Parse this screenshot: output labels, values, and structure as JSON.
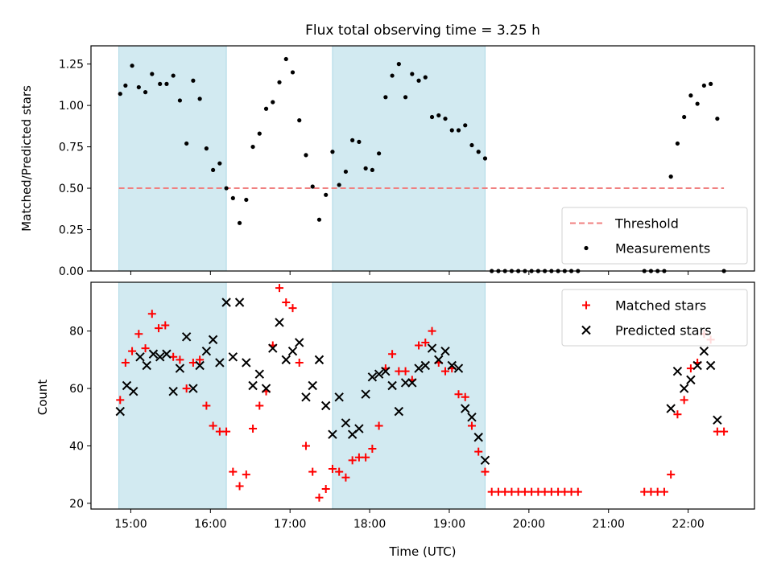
{
  "chart_data": {
    "title": "Flux total observing time = 3.25 h",
    "xlabel": "Time (UTC)",
    "x_ticks": [
      "15:00",
      "16:00",
      "17:00",
      "18:00",
      "19:00",
      "20:00",
      "21:00",
      "22:00"
    ],
    "xlim": [
      "14:30",
      "22:50"
    ],
    "shaded_intervals": [
      [
        "14:51",
        "16:12"
      ],
      [
        "17:32",
        "19:27"
      ]
    ],
    "shade_color": "#add8e6",
    "panels": [
      {
        "type": "scatter",
        "ylabel": "Matched/Predicted stars",
        "ylim": [
          0,
          1.36
        ],
        "y_ticks": [
          "0.00",
          "0.25",
          "0.50",
          "0.75",
          "1.00",
          "1.25"
        ],
        "threshold": {
          "name": "Threshold",
          "y": 0.5,
          "x_range": [
            "14:51",
            "22:27"
          ],
          "color": "#f08080"
        },
        "legend_position": "lower right",
        "series": [
          {
            "name": "Measurements",
            "color": "#000000",
            "points": [
              [
                "14:52",
                1.07
              ],
              [
                "14:56",
                1.12
              ],
              [
                "15:01",
                1.24
              ],
              [
                "15:06",
                1.11
              ],
              [
                "15:11",
                1.08
              ],
              [
                "15:16",
                1.19
              ],
              [
                "15:22",
                1.13
              ],
              [
                "15:27",
                1.13
              ],
              [
                "15:32",
                1.18
              ],
              [
                "15:37",
                1.03
              ],
              [
                "15:42",
                0.77
              ],
              [
                "15:47",
                1.15
              ],
              [
                "15:52",
                1.04
              ],
              [
                "15:57",
                0.74
              ],
              [
                "16:02",
                0.61
              ],
              [
                "16:07",
                0.65
              ],
              [
                "16:12",
                0.5
              ],
              [
                "16:17",
                0.44
              ],
              [
                "16:22",
                0.29
              ],
              [
                "16:27",
                0.43
              ],
              [
                "16:32",
                0.75
              ],
              [
                "16:37",
                0.83
              ],
              [
                "16:42",
                0.98
              ],
              [
                "16:47",
                1.02
              ],
              [
                "16:52",
                1.14
              ],
              [
                "16:57",
                1.28
              ],
              [
                "17:02",
                1.2
              ],
              [
                "17:07",
                0.91
              ],
              [
                "17:12",
                0.7
              ],
              [
                "17:17",
                0.51
              ],
              [
                "17:22",
                0.31
              ],
              [
                "17:27",
                0.46
              ],
              [
                "17:32",
                0.72
              ],
              [
                "17:37",
                0.52
              ],
              [
                "17:42",
                0.6
              ],
              [
                "17:47",
                0.79
              ],
              [
                "17:52",
                0.78
              ],
              [
                "17:57",
                0.62
              ],
              [
                "18:02",
                0.61
              ],
              [
                "18:07",
                0.71
              ],
              [
                "18:12",
                1.05
              ],
              [
                "18:17",
                1.18
              ],
              [
                "18:22",
                1.25
              ],
              [
                "18:27",
                1.05
              ],
              [
                "18:32",
                1.19
              ],
              [
                "18:37",
                1.15
              ],
              [
                "18:42",
                1.17
              ],
              [
                "18:47",
                0.93
              ],
              [
                "18:52",
                0.94
              ],
              [
                "18:57",
                0.92
              ],
              [
                "19:02",
                0.85
              ],
              [
                "19:07",
                0.85
              ],
              [
                "19:12",
                0.88
              ],
              [
                "19:17",
                0.76
              ],
              [
                "19:22",
                0.72
              ],
              [
                "19:27",
                0.68
              ],
              [
                "19:32",
                0
              ],
              [
                "19:37",
                0
              ],
              [
                "19:42",
                0
              ],
              [
                "19:47",
                0
              ],
              [
                "19:52",
                0
              ],
              [
                "19:57",
                0
              ],
              [
                "20:02",
                0
              ],
              [
                "20:07",
                0
              ],
              [
                "20:12",
                0
              ],
              [
                "20:17",
                0
              ],
              [
                "20:22",
                0
              ],
              [
                "20:27",
                0
              ],
              [
                "20:32",
                0
              ],
              [
                "20:37",
                0
              ],
              [
                "21:27",
                0
              ],
              [
                "21:32",
                0
              ],
              [
                "21:37",
                0
              ],
              [
                "21:42",
                0
              ],
              [
                "21:47",
                0.57
              ],
              [
                "21:52",
                0.77
              ],
              [
                "21:57",
                0.93
              ],
              [
                "22:02",
                1.06
              ],
              [
                "22:07",
                1.01
              ],
              [
                "22:12",
                1.12
              ],
              [
                "22:17",
                1.13
              ],
              [
                "22:22",
                0.92
              ],
              [
                "22:27",
                0
              ]
            ]
          }
        ]
      },
      {
        "type": "scatter",
        "ylabel": "Count",
        "ylim": [
          18,
          97
        ],
        "y_ticks": [
          "20",
          "40",
          "60",
          "80"
        ],
        "legend_position": "upper right",
        "series": [
          {
            "name": "Matched stars",
            "marker": "+",
            "color": "#ff0000",
            "points": [
              [
                "14:52",
                56
              ],
              [
                "14:56",
                69
              ],
              [
                "15:01",
                73
              ],
              [
                "15:06",
                79
              ],
              [
                "15:11",
                74
              ],
              [
                "15:16",
                86
              ],
              [
                "15:21",
                81
              ],
              [
                "15:26",
                82
              ],
              [
                "15:32",
                71
              ],
              [
                "15:37",
                70
              ],
              [
                "15:42",
                60
              ],
              [
                "15:47",
                69
              ],
              [
                "15:52",
                70
              ],
              [
                "15:57",
                54
              ],
              [
                "16:02",
                47
              ],
              [
                "16:07",
                45
              ],
              [
                "16:12",
                45
              ],
              [
                "16:17",
                31
              ],
              [
                "16:22",
                26
              ],
              [
                "16:27",
                30
              ],
              [
                "16:32",
                46
              ],
              [
                "16:37",
                54
              ],
              [
                "16:42",
                59
              ],
              [
                "16:47",
                75
              ],
              [
                "16:52",
                95
              ],
              [
                "16:57",
                90
              ],
              [
                "17:02",
                88
              ],
              [
                "17:07",
                69
              ],
              [
                "17:12",
                40
              ],
              [
                "17:17",
                31
              ],
              [
                "17:22",
                22
              ],
              [
                "17:27",
                25
              ],
              [
                "17:32",
                32
              ],
              [
                "17:37",
                31
              ],
              [
                "17:42",
                29
              ],
              [
                "17:47",
                35
              ],
              [
                "17:52",
                36
              ],
              [
                "17:57",
                36
              ],
              [
                "18:02",
                39
              ],
              [
                "18:07",
                47
              ],
              [
                "18:12",
                67
              ],
              [
                "18:17",
                72
              ],
              [
                "18:22",
                66
              ],
              [
                "18:27",
                66
              ],
              [
                "18:32",
                63
              ],
              [
                "18:37",
                75
              ],
              [
                "18:42",
                76
              ],
              [
                "18:47",
                80
              ],
              [
                "18:52",
                69
              ],
              [
                "18:57",
                66
              ],
              [
                "19:02",
                67
              ],
              [
                "19:07",
                58
              ],
              [
                "19:12",
                57
              ],
              [
                "19:17",
                47
              ],
              [
                "19:22",
                38
              ],
              [
                "19:27",
                31
              ],
              [
                "19:32",
                24
              ],
              [
                "19:37",
                24
              ],
              [
                "19:42",
                24
              ],
              [
                "19:47",
                24
              ],
              [
                "19:52",
                24
              ],
              [
                "19:57",
                24
              ],
              [
                "20:02",
                24
              ],
              [
                "20:07",
                24
              ],
              [
                "20:12",
                24
              ],
              [
                "20:17",
                24
              ],
              [
                "20:22",
                24
              ],
              [
                "20:27",
                24
              ],
              [
                "20:32",
                24
              ],
              [
                "20:37",
                24
              ],
              [
                "21:27",
                24
              ],
              [
                "21:32",
                24
              ],
              [
                "21:37",
                24
              ],
              [
                "21:42",
                24
              ],
              [
                "21:47",
                30
              ],
              [
                "21:52",
                51
              ],
              [
                "21:57",
                56
              ],
              [
                "22:02",
                67
              ],
              [
                "22:07",
                69
              ],
              [
                "22:12",
                79
              ],
              [
                "22:17",
                77
              ],
              [
                "22:22",
                45
              ],
              [
                "22:27",
                45
              ]
            ]
          },
          {
            "name": "Predicted stars",
            "marker": "x",
            "color": "#000000",
            "points": [
              [
                "14:52",
                52
              ],
              [
                "14:57",
                61
              ],
              [
                "15:02",
                59
              ],
              [
                "15:07",
                71
              ],
              [
                "15:12",
                68
              ],
              [
                "15:17",
                72
              ],
              [
                "15:22",
                71
              ],
              [
                "15:27",
                72
              ],
              [
                "15:32",
                59
              ],
              [
                "15:37",
                67
              ],
              [
                "15:42",
                78
              ],
              [
                "15:47",
                60
              ],
              [
                "15:52",
                68
              ],
              [
                "15:57",
                73
              ],
              [
                "16:02",
                77
              ],
              [
                "16:07",
                69
              ],
              [
                "16:12",
                90
              ],
              [
                "16:17",
                71
              ],
              [
                "16:22",
                90
              ],
              [
                "16:27",
                69
              ],
              [
                "16:32",
                61
              ],
              [
                "16:37",
                65
              ],
              [
                "16:42",
                60
              ],
              [
                "16:47",
                74
              ],
              [
                "16:52",
                83
              ],
              [
                "16:57",
                70
              ],
              [
                "17:02",
                73
              ],
              [
                "17:07",
                76
              ],
              [
                "17:12",
                57
              ],
              [
                "17:17",
                61
              ],
              [
                "17:22",
                70
              ],
              [
                "17:27",
                54
              ],
              [
                "17:32",
                44
              ],
              [
                "17:37",
                57
              ],
              [
                "17:42",
                48
              ],
              [
                "17:47",
                44
              ],
              [
                "17:52",
                46
              ],
              [
                "17:57",
                58
              ],
              [
                "18:02",
                64
              ],
              [
                "18:07",
                65
              ],
              [
                "18:12",
                66
              ],
              [
                "18:17",
                61
              ],
              [
                "18:22",
                52
              ],
              [
                "18:27",
                62
              ],
              [
                "18:32",
                62
              ],
              [
                "18:37",
                67
              ],
              [
                "18:42",
                68
              ],
              [
                "18:47",
                74
              ],
              [
                "18:52",
                70
              ],
              [
                "18:57",
                73
              ],
              [
                "19:02",
                68
              ],
              [
                "19:07",
                67
              ],
              [
                "19:12",
                53
              ],
              [
                "19:17",
                50
              ],
              [
                "19:22",
                43
              ],
              [
                "19:27",
                35
              ],
              [
                "21:47",
                53
              ],
              [
                "21:52",
                66
              ],
              [
                "21:57",
                60
              ],
              [
                "22:02",
                63
              ],
              [
                "22:07",
                68
              ],
              [
                "22:12",
                73
              ],
              [
                "22:17",
                68
              ],
              [
                "22:22",
                49
              ]
            ]
          }
        ]
      }
    ]
  }
}
